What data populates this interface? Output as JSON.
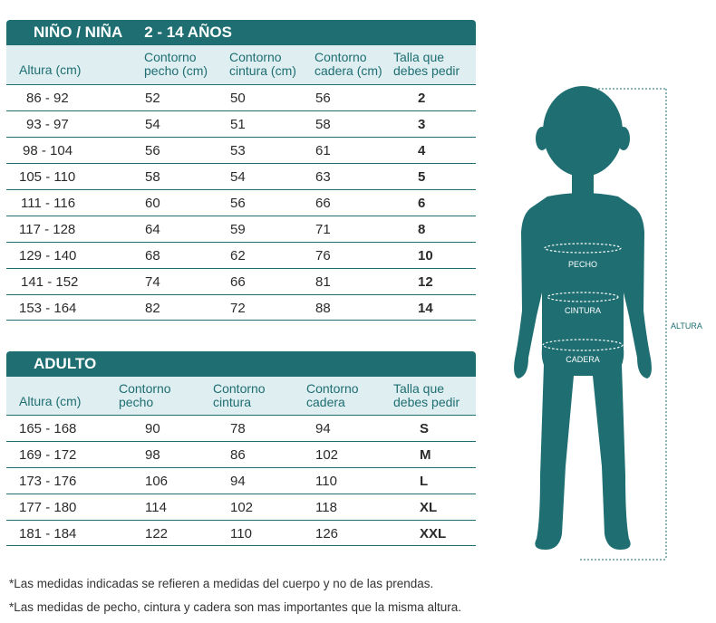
{
  "kids": {
    "title": "NIÑO / NIÑA",
    "age_range": "2 - 14 AÑOS",
    "headers": {
      "altura": "Altura (cm)",
      "pecho_1": "Contorno",
      "pecho_2": "pecho (cm)",
      "cintura_1": "Contorno",
      "cintura_2": "cintura (cm)",
      "cadera_1": "Contorno",
      "cadera_2": "cadera (cm)",
      "talla_1": "Talla que",
      "talla_2": "debes pedir"
    },
    "rows": [
      {
        "altura": "86  - 92",
        "pecho": "52",
        "cintura": "50",
        "cadera": "56",
        "talla": "2"
      },
      {
        "altura": "93  - 97",
        "pecho": "54",
        "cintura": "51",
        "cadera": "58",
        "talla": "3"
      },
      {
        "altura": "98  - 104",
        "pecho": "56",
        "cintura": "53",
        "cadera": "61",
        "talla": "4"
      },
      {
        "altura": "105 - 110",
        "pecho": "58",
        "cintura": "54",
        "cadera": "63",
        "talla": "5"
      },
      {
        "altura": "111 - 116",
        "pecho": "60",
        "cintura": "56",
        "cadera": "66",
        "talla": "6"
      },
      {
        "altura": "117  - 128",
        "pecho": "64",
        "cintura": "59",
        "cadera": "71",
        "talla": "8"
      },
      {
        "altura": "129  - 140",
        "pecho": "68",
        "cintura": "62",
        "cadera": "76",
        "talla": "10"
      },
      {
        "altura": "141 - 152",
        "pecho": "74",
        "cintura": "66",
        "cadera": "81",
        "talla": "12"
      },
      {
        "altura": "153  - 164",
        "pecho": "82",
        "cintura": "72",
        "cadera": "88",
        "talla": "14"
      }
    ]
  },
  "adult": {
    "title": "ADULTO",
    "headers": {
      "altura": "Altura (cm)",
      "pecho_1": "Contorno",
      "pecho_2": "pecho",
      "cintura_1": "Contorno",
      "cintura_2": "cintura",
      "cadera_1": "Contorno",
      "cadera_2": "cadera",
      "talla_1": "Talla que",
      "talla_2": "debes pedir"
    },
    "rows": [
      {
        "altura": "165  - 168",
        "pecho": "90",
        "cintura": "78",
        "cadera": "94",
        "talla": "S"
      },
      {
        "altura": "169  - 172",
        "pecho": "98",
        "cintura": "86",
        "cadera": "102",
        "talla": "M"
      },
      {
        "altura": "173  - 176",
        "pecho": "106",
        "cintura": "94",
        "cadera": "110",
        "talla": "L"
      },
      {
        "altura": "177  - 180",
        "pecho": "114",
        "cintura": "102",
        "cadera": "118",
        "talla": "XL"
      },
      {
        "altura": "181  - 184",
        "pecho": "122",
        "cintura": "110",
        "cadera": "126",
        "talla": "XXL"
      }
    ]
  },
  "figure": {
    "pecho": "PECHO",
    "cintura": "CINTURA",
    "cadera": "CADERA",
    "altura": "ALTURA"
  },
  "notes": [
    "*Las medidas indicadas se refieren a medidas del cuerpo y no de las prendas.",
    "*Las medidas de pecho, cintura y cadera son mas importantes que la misma altura."
  ],
  "colors": {
    "teal": "#1e6e72",
    "header_bg": "#dfeef0"
  }
}
